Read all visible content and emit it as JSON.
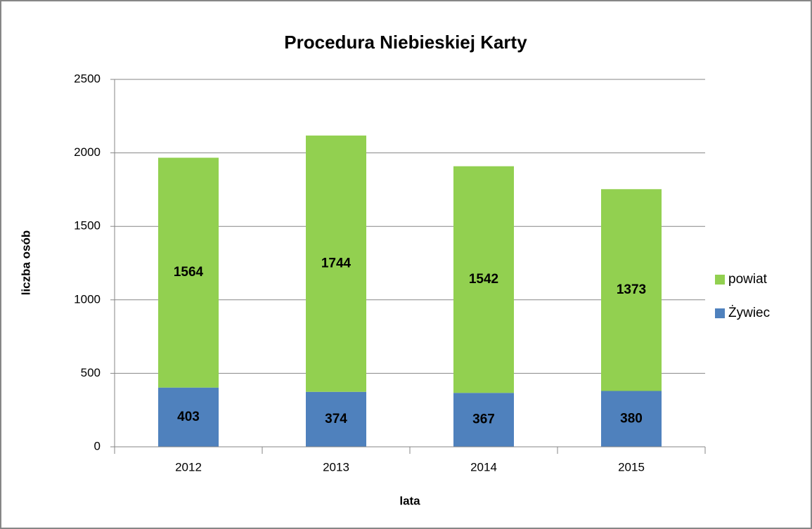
{
  "chart_data": {
    "type": "stacked_bar",
    "title": "Procedura Niebieskiej Karty",
    "x_label": "lata",
    "y_label": "liczba osób",
    "categories": [
      "2012",
      "2013",
      "2014",
      "2015"
    ],
    "series": [
      {
        "name": "Żywiec",
        "color": "#4f81bd",
        "values": [
          403,
          374,
          367,
          380
        ]
      },
      {
        "name": "powiat",
        "color": "#92d050",
        "values": [
          1564,
          1744,
          1542,
          1373
        ]
      }
    ],
    "ylim": [
      0,
      2500
    ],
    "yticks": [
      0,
      500,
      1000,
      1500,
      2000,
      2500
    ],
    "grid": true,
    "legend": "right"
  }
}
